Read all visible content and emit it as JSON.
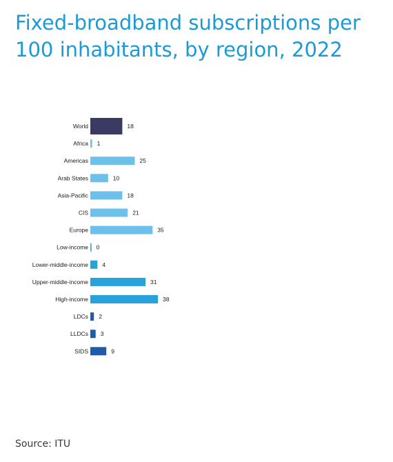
{
  "chart_data": {
    "type": "bar",
    "orientation": "horizontal",
    "title": "Fixed-broadband subscriptions per 100 inhabitants, by region, 2022",
    "categories": [
      "World",
      "Africa",
      "Americas",
      "Arab States",
      "Asia-Pacific",
      "CIS",
      "Europe",
      "Low-income",
      "Lower-middle-income",
      "Upper-middle-income",
      "High-income",
      "LDCs",
      "LLDCs",
      "SIDS"
    ],
    "values": [
      18,
      1,
      25,
      10,
      18,
      21,
      35,
      0,
      4,
      31,
      38,
      2,
      3,
      9
    ],
    "groups": [
      {
        "categories": [
          "World"
        ],
        "color": "#3b3a63"
      },
      {
        "categories": [
          "Africa",
          "Americas",
          "Arab States",
          "Asia-Pacific",
          "CIS",
          "Europe"
        ],
        "color": "#6cc0ea"
      },
      {
        "categories": [
          "Low-income",
          "Lower-middle-income",
          "Upper-middle-income",
          "High-income"
        ],
        "color": "#27a3dc"
      },
      {
        "categories": [
          "LDCs",
          "LLDCs",
          "SIDS"
        ],
        "color": "#1f5ca8"
      }
    ],
    "xlabel": "",
    "ylabel": "",
    "xlim": [
      0,
      40
    ],
    "grid": false,
    "legend": "none"
  },
  "source": "Source: ITU"
}
